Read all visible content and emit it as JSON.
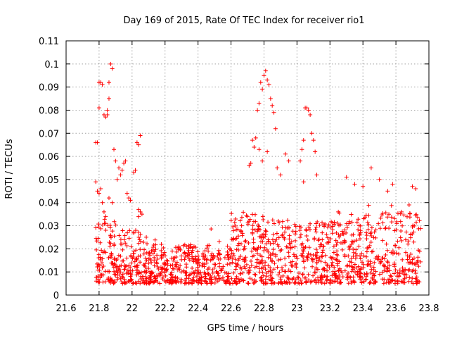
{
  "chart_data": {
    "type": "scatter",
    "title": "Day 169 of 2015, Rate Of TEC Index for receiver rio1",
    "xlabel": "GPS time / hours",
    "ylabel": "ROTI / TECUs",
    "xlim": [
      21.6,
      23.8
    ],
    "ylim": [
      0,
      0.11
    ],
    "grid": true,
    "marker": "+",
    "series_color": "#ff0000",
    "xticks": [
      "21.6",
      "21.8",
      "22",
      "22.2",
      "22.4",
      "22.6",
      "22.8",
      "23",
      "23.2",
      "23.4",
      "23.6",
      "23.8"
    ],
    "yticks": [
      "0",
      "0.01",
      "0.02",
      "0.03",
      "0.04",
      "0.05",
      "0.06",
      "0.07",
      "0.08",
      "0.09",
      "0.1",
      "0.11"
    ],
    "series": [
      {
        "name": "rio1",
        "points": [
          [
            21.78,
            0.049
          ],
          [
            21.78,
            0.066
          ],
          [
            21.79,
            0.066
          ],
          [
            21.8,
            0.081
          ],
          [
            21.8,
            0.092
          ],
          [
            21.81,
            0.092
          ],
          [
            21.82,
            0.091
          ],
          [
            21.83,
            0.078
          ],
          [
            21.84,
            0.077
          ],
          [
            21.85,
            0.078
          ],
          [
            21.86,
            0.085
          ],
          [
            21.86,
            0.092
          ],
          [
            21.87,
            0.1
          ],
          [
            21.88,
            0.098
          ],
          [
            21.85,
            0.08
          ],
          [
            21.79,
            0.045
          ],
          [
            21.8,
            0.044
          ],
          [
            21.81,
            0.046
          ],
          [
            21.82,
            0.04
          ],
          [
            21.83,
            0.036
          ],
          [
            21.84,
            0.034
          ],
          [
            21.86,
            0.042
          ],
          [
            21.88,
            0.04
          ],
          [
            21.89,
            0.063
          ],
          [
            21.9,
            0.058
          ],
          [
            21.91,
            0.05
          ],
          [
            21.92,
            0.055
          ],
          [
            21.93,
            0.052
          ],
          [
            21.94,
            0.054
          ],
          [
            21.95,
            0.057
          ],
          [
            21.96,
            0.058
          ],
          [
            21.97,
            0.044
          ],
          [
            21.98,
            0.042
          ],
          [
            21.99,
            0.041
          ],
          [
            22.01,
            0.053
          ],
          [
            22.02,
            0.054
          ],
          [
            22.03,
            0.066
          ],
          [
            22.04,
            0.065
          ],
          [
            22.05,
            0.069
          ],
          [
            22.04,
            0.037
          ],
          [
            22.05,
            0.036
          ],
          [
            22.06,
            0.035
          ],
          [
            22.71,
            0.056
          ],
          [
            22.72,
            0.057
          ],
          [
            22.73,
            0.067
          ],
          [
            22.74,
            0.064
          ],
          [
            22.75,
            0.068
          ],
          [
            22.76,
            0.08
          ],
          [
            22.77,
            0.083
          ],
          [
            22.78,
            0.092
          ],
          [
            22.79,
            0.089
          ],
          [
            22.8,
            0.095
          ],
          [
            22.81,
            0.097
          ],
          [
            22.82,
            0.093
          ],
          [
            22.83,
            0.091
          ],
          [
            22.84,
            0.085
          ],
          [
            22.85,
            0.082
          ],
          [
            22.86,
            0.079
          ],
          [
            22.87,
            0.072
          ],
          [
            22.77,
            0.063
          ],
          [
            22.79,
            0.058
          ],
          [
            22.82,
            0.062
          ],
          [
            22.88,
            0.055
          ],
          [
            22.9,
            0.052
          ],
          [
            22.93,
            0.061
          ],
          [
            22.95,
            0.058
          ],
          [
            23.02,
            0.058
          ],
          [
            23.03,
            0.063
          ],
          [
            23.04,
            0.067
          ],
          [
            23.05,
            0.081
          ],
          [
            23.06,
            0.081
          ],
          [
            23.07,
            0.08
          ],
          [
            23.08,
            0.078
          ],
          [
            23.09,
            0.07
          ],
          [
            23.1,
            0.067
          ],
          [
            23.11,
            0.062
          ],
          [
            23.04,
            0.049
          ],
          [
            23.12,
            0.052
          ],
          [
            23.3,
            0.051
          ],
          [
            23.35,
            0.048
          ],
          [
            23.4,
            0.047
          ],
          [
            23.45,
            0.055
          ],
          [
            23.5,
            0.05
          ],
          [
            23.55,
            0.045
          ],
          [
            23.58,
            0.048
          ],
          [
            23.7,
            0.047
          ],
          [
            23.72,
            0.046
          ],
          [
            23.68,
            0.039
          ]
        ]
      }
    ]
  }
}
